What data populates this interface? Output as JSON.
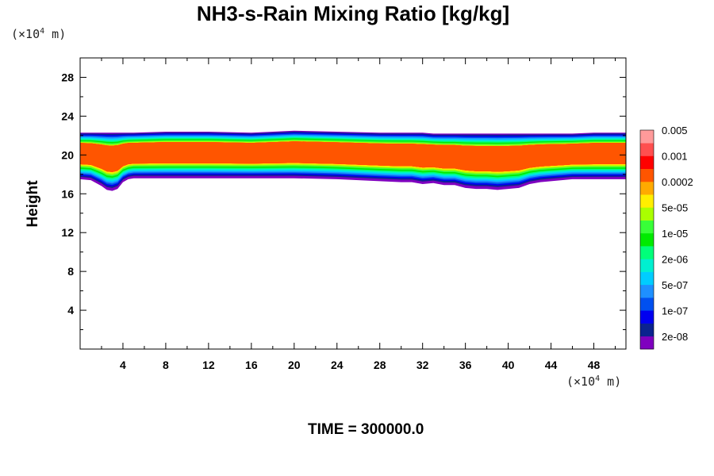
{
  "chart_data": {
    "type": "area",
    "title": "NH3-s-Rain Mixing Ratio [kg/kg]",
    "ylabel": "Height",
    "xlabel": "",
    "x_unit_prefix": "(×10",
    "x_unit_exp": "4",
    "x_unit_suffix": " m)",
    "y_unit_prefix": "(×10",
    "y_unit_exp": "4",
    "y_unit_suffix": " m)",
    "xlim": [
      0,
      51
    ],
    "ylim": [
      0,
      30
    ],
    "x_ticks": [
      4,
      8,
      12,
      16,
      20,
      24,
      28,
      32,
      36,
      40,
      44,
      48
    ],
    "y_ticks": [
      4,
      8,
      12,
      16,
      20,
      24,
      28
    ],
    "colorbar": {
      "colors": [
        "#7f00bf",
        "#0b238f",
        "#0000f0",
        "#0050f0",
        "#1e90ff",
        "#00cdff",
        "#00f0d0",
        "#00ff7a",
        "#00ea00",
        "#38ff38",
        "#aaff00",
        "#ffee00",
        "#ffaa00",
        "#ff5500",
        "#ff0000",
        "#ff4f4f",
        "#ff9a9a"
      ],
      "labels": [
        "2e-08",
        "1e-07",
        "5e-07",
        "2e-06",
        "1e-05",
        "5e-05",
        "0.0002",
        "0.001",
        "0.005"
      ],
      "label_levels": [
        1,
        3,
        5,
        7,
        9,
        11,
        13,
        15,
        17
      ]
    },
    "series": [
      {
        "x": [
          0,
          1,
          2,
          2.5,
          3,
          3.5,
          4,
          4.5,
          5,
          8,
          12,
          16,
          20,
          24,
          28,
          30,
          31,
          32,
          33,
          34,
          35,
          36,
          37,
          38,
          39,
          40,
          41,
          42,
          43,
          44,
          45,
          46,
          48,
          50,
          51
        ],
        "bottom": [
          17.5,
          17.4,
          16.8,
          16.4,
          16.3,
          16.5,
          17.2,
          17.5,
          17.6,
          17.6,
          17.6,
          17.6,
          17.6,
          17.5,
          17.3,
          17.2,
          17.2,
          17.0,
          17.1,
          16.9,
          16.9,
          16.6,
          16.5,
          16.5,
          16.4,
          16.5,
          16.6,
          17.0,
          17.2,
          17.3,
          17.4,
          17.5,
          17.5,
          17.5,
          17.5
        ],
        "top": [
          22.3,
          22.3,
          22.3,
          22.3,
          22.3,
          22.3,
          22.3,
          22.3,
          22.3,
          22.4,
          22.4,
          22.3,
          22.5,
          22.4,
          22.3,
          22.3,
          22.3,
          22.3,
          22.2,
          22.2,
          22.2,
          22.2,
          22.2,
          22.2,
          22.2,
          22.2,
          22.2,
          22.2,
          22.2,
          22.2,
          22.2,
          22.2,
          22.3,
          22.3,
          22.3
        ]
      }
    ]
  },
  "time_label": "TIME = 300000.0"
}
